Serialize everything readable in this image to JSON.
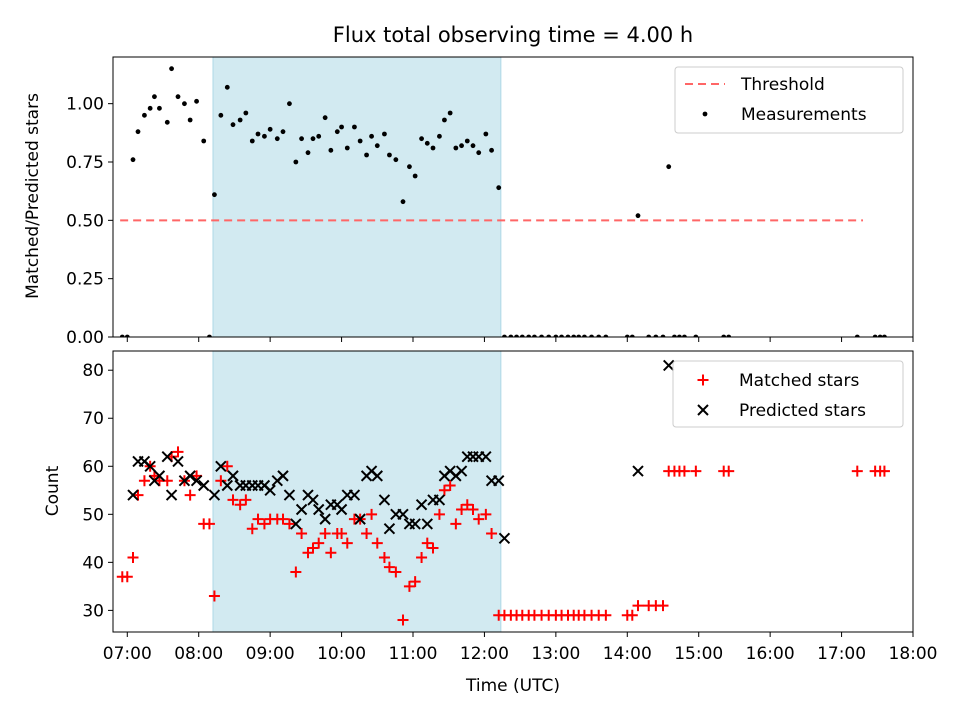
{
  "chart_data": [
    {
      "type": "scatter",
      "title": "Flux total observing time = 4.00 h",
      "xlabel": "",
      "ylabel": "Matched/Predicted stars",
      "xlim": [
        6.8,
        18.0
      ],
      "ylim": [
        0.0,
        1.2
      ],
      "yticks": [
        0.0,
        0.25,
        0.5,
        0.75,
        1.0
      ],
      "ytick_labels": [
        "0.00",
        "0.25",
        "0.50",
        "0.75",
        "1.00"
      ],
      "shaded_interval": {
        "start": 8.2,
        "end": 12.23,
        "color": "#add8e6"
      },
      "legend": {
        "placement": "top-right",
        "entries": [
          "Threshold",
          "Measurements"
        ]
      },
      "threshold": {
        "name": "Threshold",
        "value": 0.5,
        "x_start": 6.9,
        "x_end": 17.3,
        "color": "#ff6666"
      },
      "series": [
        {
          "name": "Measurements",
          "color": "#000000",
          "points": [
            [
              6.93,
              0.0
            ],
            [
              7.0,
              0.0
            ],
            [
              7.08,
              0.76
            ],
            [
              7.15,
              0.88
            ],
            [
              7.24,
              0.95
            ],
            [
              7.32,
              0.98
            ],
            [
              7.38,
              1.03
            ],
            [
              7.45,
              0.98
            ],
            [
              7.56,
              0.92
            ],
            [
              7.62,
              1.15
            ],
            [
              7.71,
              1.03
            ],
            [
              7.8,
              1.0
            ],
            [
              7.88,
              0.93
            ],
            [
              7.97,
              1.01
            ],
            [
              8.07,
              0.84
            ],
            [
              8.15,
              0.0
            ],
            [
              8.22,
              0.61
            ],
            [
              8.31,
              0.95
            ],
            [
              8.4,
              1.07
            ],
            [
              8.48,
              0.91
            ],
            [
              8.58,
              0.93
            ],
            [
              8.66,
              0.96
            ],
            [
              8.75,
              0.84
            ],
            [
              8.83,
              0.87
            ],
            [
              8.92,
              0.86
            ],
            [
              9.0,
              0.89
            ],
            [
              9.1,
              0.85
            ],
            [
              9.18,
              0.88
            ],
            [
              9.27,
              1.0
            ],
            [
              9.36,
              0.75
            ],
            [
              9.44,
              0.85
            ],
            [
              9.53,
              0.79
            ],
            [
              9.6,
              0.85
            ],
            [
              9.68,
              0.86
            ],
            [
              9.77,
              0.94
            ],
            [
              9.85,
              0.8
            ],
            [
              9.94,
              0.88
            ],
            [
              10.0,
              0.9
            ],
            [
              10.08,
              0.81
            ],
            [
              10.18,
              0.9
            ],
            [
              10.26,
              0.84
            ],
            [
              10.35,
              0.78
            ],
            [
              10.42,
              0.86
            ],
            [
              10.5,
              0.82
            ],
            [
              10.6,
              0.87
            ],
            [
              10.67,
              0.78
            ],
            [
              10.76,
              0.76
            ],
            [
              10.86,
              0.58
            ],
            [
              10.95,
              0.73
            ],
            [
              11.03,
              0.69
            ],
            [
              11.12,
              0.85
            ],
            [
              11.2,
              0.83
            ],
            [
              11.28,
              0.81
            ],
            [
              11.37,
              0.86
            ],
            [
              11.44,
              0.93
            ],
            [
              11.52,
              0.96
            ],
            [
              11.6,
              0.81
            ],
            [
              11.68,
              0.82
            ],
            [
              11.76,
              0.84
            ],
            [
              11.84,
              0.82
            ],
            [
              11.92,
              0.79
            ],
            [
              12.02,
              0.87
            ],
            [
              12.1,
              0.8
            ],
            [
              12.2,
              0.64
            ],
            [
              12.28,
              0.0
            ],
            [
              12.37,
              0.0
            ],
            [
              12.45,
              0.0
            ],
            [
              12.53,
              0.0
            ],
            [
              12.62,
              0.0
            ],
            [
              12.7,
              0.0
            ],
            [
              12.8,
              0.0
            ],
            [
              12.9,
              0.0
            ],
            [
              13.0,
              0.0
            ],
            [
              13.08,
              0.0
            ],
            [
              13.17,
              0.0
            ],
            [
              13.25,
              0.0
            ],
            [
              13.32,
              0.0
            ],
            [
              13.4,
              0.0
            ],
            [
              13.5,
              0.0
            ],
            [
              13.6,
              0.0
            ],
            [
              13.7,
              0.0
            ],
            [
              14.0,
              0.0
            ],
            [
              14.07,
              0.0
            ],
            [
              14.15,
              0.52
            ],
            [
              14.3,
              0.0
            ],
            [
              14.4,
              0.0
            ],
            [
              14.5,
              0.0
            ],
            [
              14.58,
              0.73
            ],
            [
              14.66,
              0.0
            ],
            [
              14.73,
              0.0
            ],
            [
              14.8,
              0.0
            ],
            [
              14.96,
              0.0
            ],
            [
              15.35,
              0.0
            ],
            [
              15.42,
              0.0
            ],
            [
              17.22,
              0.0
            ],
            [
              17.47,
              0.0
            ],
            [
              17.54,
              0.0
            ],
            [
              17.6,
              0.0
            ]
          ]
        }
      ]
    },
    {
      "type": "scatter",
      "title": "",
      "xlabel": "Time (UTC)",
      "ylabel": "Count",
      "xlim": [
        6.8,
        18.0
      ],
      "ylim": [
        25.5,
        84.0
      ],
      "xticks": [
        7,
        8,
        9,
        10,
        11,
        12,
        13,
        14,
        15,
        16,
        17,
        18
      ],
      "xtick_labels": [
        "07:00",
        "08:00",
        "09:00",
        "10:00",
        "11:00",
        "12:00",
        "13:00",
        "14:00",
        "15:00",
        "16:00",
        "17:00",
        "18:00"
      ],
      "yticks": [
        30,
        40,
        50,
        60,
        70,
        80
      ],
      "ytick_labels": [
        "30",
        "40",
        "50",
        "60",
        "70",
        "80"
      ],
      "shaded_interval": {
        "start": 8.2,
        "end": 12.23,
        "color": "#add8e6"
      },
      "legend": {
        "placement": "top-right",
        "entries": [
          "Matched stars",
          "Predicted stars"
        ]
      },
      "series": [
        {
          "name": "Matched stars",
          "marker": "plus",
          "color": "#ff0000",
          "points": [
            [
              6.93,
              37
            ],
            [
              7.0,
              37
            ],
            [
              7.08,
              41
            ],
            [
              7.15,
              54
            ],
            [
              7.24,
              57
            ],
            [
              7.32,
              60
            ],
            [
              7.38,
              58
            ],
            [
              7.45,
              57
            ],
            [
              7.56,
              57
            ],
            [
              7.62,
              62
            ],
            [
              7.71,
              63
            ],
            [
              7.8,
              57
            ],
            [
              7.88,
              54
            ],
            [
              7.97,
              58
            ],
            [
              8.07,
              48
            ],
            [
              8.15,
              48
            ],
            [
              8.22,
              33
            ],
            [
              8.31,
              57
            ],
            [
              8.4,
              60
            ],
            [
              8.48,
              53
            ],
            [
              8.58,
              52
            ],
            [
              8.66,
              53
            ],
            [
              8.75,
              47
            ],
            [
              8.83,
              49
            ],
            [
              8.92,
              48
            ],
            [
              9.0,
              49
            ],
            [
              9.1,
              49
            ],
            [
              9.18,
              49
            ],
            [
              9.27,
              48
            ],
            [
              9.36,
              38
            ],
            [
              9.44,
              46
            ],
            [
              9.53,
              42
            ],
            [
              9.6,
              43
            ],
            [
              9.68,
              44
            ],
            [
              9.77,
              46
            ],
            [
              9.85,
              42
            ],
            [
              9.94,
              46
            ],
            [
              10.0,
              46
            ],
            [
              10.08,
              44
            ],
            [
              10.18,
              49
            ],
            [
              10.26,
              49
            ],
            [
              10.35,
              46
            ],
            [
              10.42,
              50
            ],
            [
              10.5,
              44
            ],
            [
              10.6,
              41
            ],
            [
              10.67,
              39
            ],
            [
              10.76,
              38
            ],
            [
              10.86,
              28
            ],
            [
              10.95,
              35
            ],
            [
              11.03,
              36
            ],
            [
              11.12,
              41
            ],
            [
              11.2,
              44
            ],
            [
              11.28,
              43
            ],
            [
              11.37,
              50
            ],
            [
              11.44,
              55
            ],
            [
              11.52,
              56
            ],
            [
              11.6,
              48
            ],
            [
              11.68,
              51
            ],
            [
              11.76,
              52
            ],
            [
              11.84,
              51
            ],
            [
              11.92,
              49
            ],
            [
              12.02,
              50
            ],
            [
              12.1,
              46
            ],
            [
              12.2,
              29
            ],
            [
              12.28,
              29
            ],
            [
              12.37,
              29
            ],
            [
              12.45,
              29
            ],
            [
              12.53,
              29
            ],
            [
              12.62,
              29
            ],
            [
              12.7,
              29
            ],
            [
              12.8,
              29
            ],
            [
              12.9,
              29
            ],
            [
              13.0,
              29
            ],
            [
              13.08,
              29
            ],
            [
              13.17,
              29
            ],
            [
              13.25,
              29
            ],
            [
              13.32,
              29
            ],
            [
              13.4,
              29
            ],
            [
              13.5,
              29
            ],
            [
              13.6,
              29
            ],
            [
              13.7,
              29
            ],
            [
              14.0,
              29
            ],
            [
              14.07,
              29
            ],
            [
              14.15,
              31
            ],
            [
              14.3,
              31
            ],
            [
              14.4,
              31
            ],
            [
              14.5,
              31
            ],
            [
              14.58,
              59
            ],
            [
              14.66,
              59
            ],
            [
              14.73,
              59
            ],
            [
              14.8,
              59
            ],
            [
              14.96,
              59
            ],
            [
              15.35,
              59
            ],
            [
              15.42,
              59
            ],
            [
              17.22,
              59
            ],
            [
              17.47,
              59
            ],
            [
              17.54,
              59
            ],
            [
              17.6,
              59
            ]
          ]
        },
        {
          "name": "Predicted stars",
          "marker": "x",
          "color": "#000000",
          "points": [
            [
              7.08,
              54
            ],
            [
              7.15,
              61
            ],
            [
              7.24,
              61
            ],
            [
              7.32,
              60
            ],
            [
              7.38,
              57
            ],
            [
              7.45,
              58
            ],
            [
              7.56,
              62
            ],
            [
              7.62,
              54
            ],
            [
              7.71,
              61
            ],
            [
              7.8,
              57
            ],
            [
              7.88,
              58
            ],
            [
              7.97,
              57
            ],
            [
              8.07,
              56
            ],
            [
              8.22,
              54
            ],
            [
              8.31,
              60
            ],
            [
              8.4,
              56
            ],
            [
              8.48,
              58
            ],
            [
              8.58,
              56
            ],
            [
              8.66,
              56
            ],
            [
              8.75,
              56
            ],
            [
              8.83,
              56
            ],
            [
              8.92,
              56
            ],
            [
              9.0,
              55
            ],
            [
              9.1,
              57
            ],
            [
              9.18,
              58
            ],
            [
              9.27,
              54
            ],
            [
              9.36,
              48
            ],
            [
              9.44,
              51
            ],
            [
              9.53,
              54
            ],
            [
              9.6,
              53
            ],
            [
              9.68,
              51
            ],
            [
              9.77,
              49
            ],
            [
              9.85,
              52
            ],
            [
              9.94,
              52
            ],
            [
              10.0,
              51
            ],
            [
              10.08,
              54
            ],
            [
              10.18,
              54
            ],
            [
              10.26,
              49
            ],
            [
              10.35,
              58
            ],
            [
              10.42,
              59
            ],
            [
              10.5,
              58
            ],
            [
              10.6,
              53
            ],
            [
              10.67,
              47
            ],
            [
              10.76,
              50
            ],
            [
              10.86,
              50
            ],
            [
              10.95,
              48
            ],
            [
              11.03,
              48
            ],
            [
              11.12,
              52
            ],
            [
              11.2,
              48
            ],
            [
              11.28,
              53
            ],
            [
              11.37,
              53
            ],
            [
              11.44,
              58
            ],
            [
              11.52,
              59
            ],
            [
              11.6,
              58
            ],
            [
              11.68,
              59
            ],
            [
              11.76,
              62
            ],
            [
              11.84,
              62
            ],
            [
              11.92,
              62
            ],
            [
              12.02,
              62
            ],
            [
              12.1,
              57
            ],
            [
              12.2,
              57
            ],
            [
              12.28,
              45
            ],
            [
              14.15,
              59
            ],
            [
              14.58,
              81
            ]
          ]
        }
      ]
    }
  ]
}
